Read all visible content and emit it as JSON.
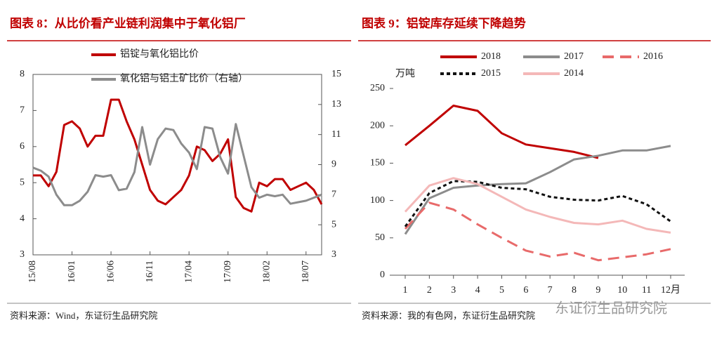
{
  "chart_data": [
    {
      "type": "line",
      "title": "图表 8：从比价看产业链利润集中于氧化铝厂",
      "source": "资料来源：Wind，东证衍生品研究院",
      "categories": [
        "15/08",
        null,
        null,
        null,
        null,
        "16/01",
        null,
        null,
        null,
        null,
        "16/06",
        null,
        null,
        null,
        null,
        "16/11",
        null,
        null,
        null,
        null,
        "17/04",
        null,
        null,
        null,
        null,
        "17/09",
        null,
        null,
        null,
        null,
        "18/02",
        null,
        null,
        null,
        null,
        "18/07",
        null,
        null
      ],
      "series": [
        {
          "name": "铝锭与氧化铝比价",
          "color": "#c00000",
          "linestyle": "solid",
          "values": [
            5.2,
            5.2,
            4.9,
            5.3,
            6.6,
            6.7,
            6.5,
            6.0,
            6.3,
            6.3,
            7.3,
            7.3,
            6.7,
            6.2,
            5.5,
            4.8,
            4.5,
            4.4,
            4.6,
            4.8,
            5.2,
            6.0,
            5.9,
            5.6,
            5.8,
            6.2,
            4.6,
            4.3,
            4.2,
            5.0,
            4.9,
            5.1,
            5.1,
            4.8,
            4.9,
            5.0,
            4.8,
            4.4
          ]
        },
        {
          "name": "氧化铝与铝土矿比价（右轴）",
          "color": "#8c8c8c",
          "linestyle": "solid",
          "axis": "y2",
          "values": [
            8.8,
            8.6,
            8.2,
            7.0,
            6.3,
            6.3,
            6.6,
            7.2,
            8.3,
            8.2,
            8.3,
            7.3,
            7.4,
            8.5,
            11.5,
            9.0,
            10.7,
            11.4,
            11.3,
            10.4,
            9.8,
            8.7,
            11.5,
            11.4,
            9.5,
            8.4,
            11.7,
            9.6,
            7.5,
            6.8,
            7.0,
            6.9,
            7.0,
            6.4,
            6.5,
            6.6,
            6.8,
            7.0
          ]
        }
      ],
      "ylim": [
        3,
        8
      ],
      "yticks": [
        3,
        4,
        5,
        6,
        7,
        8
      ],
      "y2lim": [
        3,
        15
      ],
      "y2ticks": [
        3,
        5,
        7,
        9,
        11,
        13,
        15
      ]
    },
    {
      "type": "line",
      "title": "图表 9：铝锭库存延续下降趋势",
      "source": "资料来源：我的有色网，东证衍生品研究院",
      "watermark": "东证衍生品研究院",
      "y_unit": "万吨",
      "categories": [
        "1",
        "2",
        "3",
        "4",
        "5",
        "6",
        "7",
        "8",
        "9",
        "10",
        "11",
        "12月"
      ],
      "series": [
        {
          "name": "2018",
          "color": "#c00000",
          "linestyle": "solid",
          "values": [
            174,
            200,
            227,
            220,
            190,
            175,
            170,
            165,
            157,
            null,
            null,
            null
          ]
        },
        {
          "name": "2017",
          "color": "#8c8c8c",
          "linestyle": "solid",
          "values": [
            55,
            103,
            117,
            120,
            122,
            123,
            138,
            155,
            160,
            167,
            167,
            173
          ]
        },
        {
          "name": "2016",
          "color": "#e86a6a",
          "linestyle": "longdash",
          "values": [
            62,
            97,
            88,
            68,
            50,
            33,
            25,
            30,
            20,
            24,
            28,
            35
          ]
        },
        {
          "name": "2015",
          "color": "#111111",
          "linestyle": "dash",
          "values": [
            65,
            110,
            126,
            125,
            117,
            115,
            105,
            101,
            100,
            106,
            95,
            72
          ]
        },
        {
          "name": "2014",
          "color": "#f4b8b8",
          "linestyle": "solid",
          "values": [
            85,
            120,
            130,
            122,
            105,
            88,
            78,
            70,
            68,
            73,
            62,
            57
          ]
        }
      ],
      "ylim": [
        0,
        250
      ],
      "yticks": [
        0,
        50,
        100,
        150,
        200,
        250
      ]
    }
  ]
}
